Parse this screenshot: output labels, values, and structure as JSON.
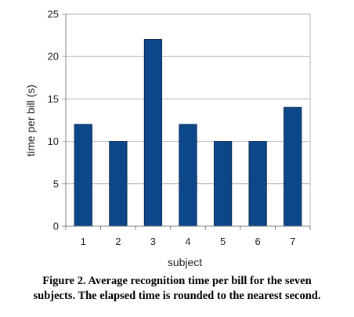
{
  "chart_data": {
    "type": "bar",
    "categories": [
      "1",
      "2",
      "3",
      "4",
      "5",
      "6",
      "7"
    ],
    "values": [
      12,
      10,
      22,
      12,
      10,
      10,
      14
    ],
    "title": "",
    "xlabel": "subject",
    "ylabel": "time per bill (s)",
    "ylim": [
      0,
      25
    ],
    "yticks": [
      "0",
      "5",
      "10",
      "15",
      "20",
      "25"
    ],
    "grid": true,
    "legend": "none",
    "colors": {
      "bar_fill": "#0d4689",
      "bar_stroke": "#072b57",
      "grid": "#b3b3b3",
      "axis": "#808080"
    }
  },
  "caption": {
    "line1": "Figure 2. Average recognition time per bill for the seven",
    "line2": "subjects. The elapsed time is rounded to the nearest second."
  }
}
